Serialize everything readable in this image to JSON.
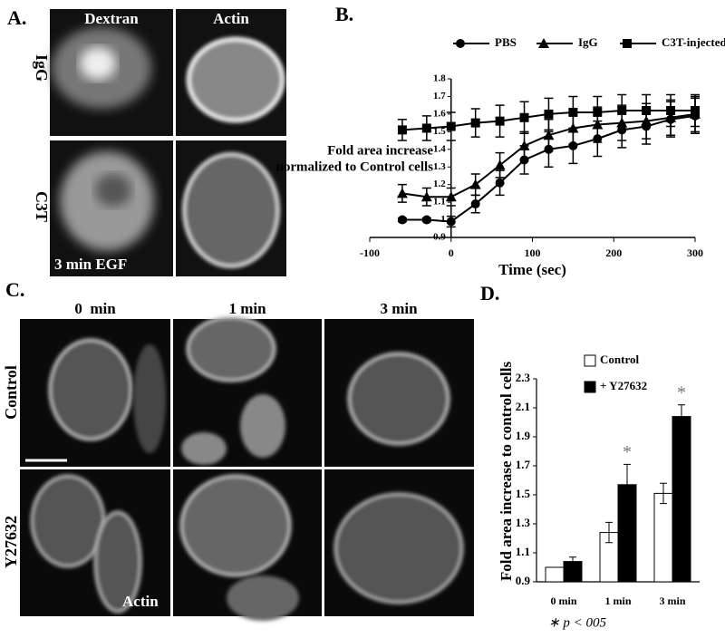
{
  "panels": {
    "a": {
      "label": "A.",
      "columns": [
        "Dextran",
        "Actin"
      ],
      "rows": [
        "IgG",
        "C3T"
      ],
      "note": "3 min EGF"
    },
    "b": {
      "label": "B."
    },
    "c": {
      "label": "C.",
      "columns": [
        "0  min",
        "1 min",
        "3 min"
      ],
      "rows": [
        "Control",
        "Y27632"
      ],
      "note": "Actin"
    },
    "d": {
      "label": "D.",
      "footnote": "∗ p < 005"
    }
  },
  "chart_data": [
    {
      "type": "line",
      "x_label": "Time (sec)",
      "y_label": [
        "Fold area increase",
        "normalized to Control cells"
      ],
      "x": [
        -60,
        -30,
        0,
        30,
        60,
        90,
        120,
        150,
        180,
        210,
        240,
        270,
        300
      ],
      "series": [
        {
          "name": "PBS",
          "color": "#000",
          "marker": "circle",
          "values": [
            1.0,
            1.0,
            0.99,
            1.09,
            1.21,
            1.34,
            1.4,
            1.42,
            1.46,
            1.51,
            1.53,
            1.57,
            1.59
          ],
          "errors": [
            0.01,
            0.01,
            0.03,
            0.05,
            0.07,
            0.08,
            0.1,
            0.1,
            0.1,
            0.1,
            0.1,
            0.1,
            0.1
          ]
        },
        {
          "name": "IgG",
          "color": "#000",
          "marker": "triangle",
          "values": [
            1.15,
            1.13,
            1.13,
            1.2,
            1.31,
            1.42,
            1.48,
            1.52,
            1.54,
            1.55,
            1.56,
            1.58,
            1.6
          ],
          "errors": [
            0.05,
            0.05,
            0.05,
            0.06,
            0.07,
            0.08,
            0.09,
            0.09,
            0.1,
            0.1,
            0.1,
            0.1,
            0.1
          ]
        },
        {
          "name": "C3T-injected",
          "color": "#000",
          "marker": "square",
          "values": [
            1.51,
            1.52,
            1.53,
            1.55,
            1.56,
            1.58,
            1.6,
            1.61,
            1.61,
            1.62,
            1.62,
            1.62,
            1.62
          ],
          "errors": [
            0.06,
            0.07,
            0.08,
            0.08,
            0.09,
            0.09,
            0.09,
            0.09,
            0.09,
            0.09,
            0.09,
            0.09,
            0.09
          ]
        }
      ],
      "xlim": [
        -100,
        300
      ],
      "xticks": [
        -100,
        0,
        100,
        200,
        300
      ],
      "ylim": [
        0.9,
        1.8
      ],
      "yticks": [
        0.9,
        1.0,
        1.1,
        1.2,
        1.3,
        1.4,
        1.5,
        1.6,
        1.7,
        1.8
      ]
    },
    {
      "type": "bar",
      "y_label": "Fold area increase to control cells",
      "categories": [
        "0 min",
        "1 min",
        "3 min"
      ],
      "series": [
        {
          "name": "Control",
          "color": "#fff",
          "values": [
            1.0,
            1.24,
            1.51
          ],
          "errors": [
            0.0,
            0.07,
            0.07
          ],
          "marks": [
            null,
            null,
            null
          ]
        },
        {
          "name": "+ Y27632",
          "color": "#000",
          "values": [
            1.04,
            1.57,
            2.04
          ],
          "errors": [
            0.03,
            0.14,
            0.08
          ],
          "marks": [
            null,
            "*",
            "*"
          ]
        }
      ],
      "ylim": [
        0.9,
        2.3
      ],
      "yticks": [
        0.9,
        1.1,
        1.3,
        1.5,
        1.7,
        1.9,
        2.1,
        2.3
      ]
    }
  ]
}
